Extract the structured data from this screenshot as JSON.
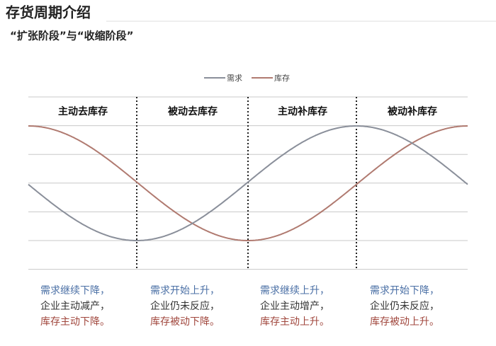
{
  "header": {
    "title": "存货周期介绍",
    "subtitle": "“扩张阶段”与“收缩阶段”"
  },
  "legend": [
    "需求",
    "库存"
  ],
  "phases": [
    "主动去库存",
    "被动去库存",
    "主动补库存",
    "被动补库存"
  ],
  "notes": [
    [
      "需求继续下降，",
      "企业主动减产，",
      "库存主动下降。"
    ],
    [
      "需求开始上升，",
      "企业仍未反应，",
      "库存被动下降。"
    ],
    [
      "需求继续上升，",
      "企业主动增产，",
      "库存主动上升。"
    ],
    [
      "需求开始下降，",
      "企业仍未反应，",
      "库存被动上升。"
    ]
  ]
}
